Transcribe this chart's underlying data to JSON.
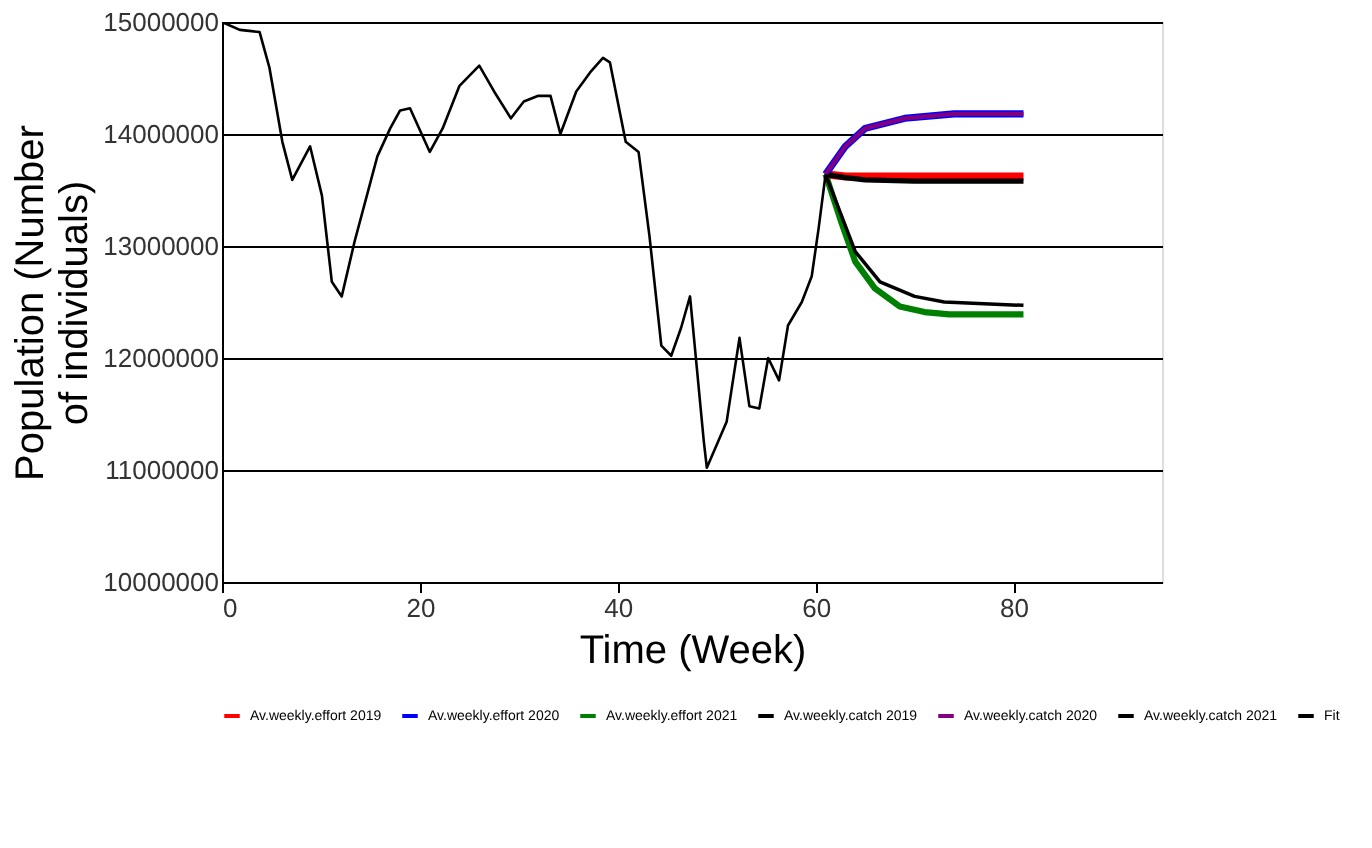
{
  "chart_data": {
    "type": "line",
    "xlabel": "Time (Week)",
    "ylabel": "Population (Number of individuals)",
    "xlim": [
      0,
      95
    ],
    "xticks": [
      0,
      20,
      40,
      60,
      80
    ],
    "ylim": [
      10000000,
      15000000
    ],
    "yticks": [
      10000000,
      11000000,
      12000000,
      13000000,
      14000000,
      15000000
    ],
    "grid": "y",
    "legend": "bottom",
    "marker": "none",
    "line_style": "solid",
    "series": [
      {
        "name": "Av.weekly.effort 2019",
        "color": "#ff0000",
        "x": [
          61,
          63,
          66,
          70,
          75,
          81
        ],
        "values": [
          13640000,
          13620000,
          13620000,
          13620000,
          13620000,
          13620000
        ]
      },
      {
        "name": "Av.weekly.effort 2020",
        "color": "#0000ff",
        "x": [
          61,
          63,
          65,
          69,
          74,
          81
        ],
        "values": [
          13640000,
          13890000,
          14050000,
          14140000,
          14180000,
          14180000
        ]
      },
      {
        "name": "Av.weekly.effort 2021",
        "color": "#008000",
        "x": [
          61,
          62.6,
          64,
          66,
          68.5,
          71,
          73.5,
          81
        ],
        "values": [
          13640000,
          13210000,
          12860000,
          12620000,
          12460000,
          12410000,
          12390000,
          12390000
        ]
      },
      {
        "name": "Av.weekly.catch 2019",
        "color": "#000000",
        "x": [
          61,
          63,
          65,
          70,
          81
        ],
        "values": [
          13640000,
          13610000,
          13590000,
          13580000,
          13580000
        ]
      },
      {
        "name": "Av.weekly.catch 2020",
        "color": "#800080",
        "x": [
          61,
          63,
          65,
          69,
          74,
          81
        ],
        "values": [
          13640000,
          13890000,
          14050000,
          14140000,
          14180000,
          14180000
        ]
      },
      {
        "name": "Av.weekly.catch 2021",
        "color": "#000000",
        "x": [
          61,
          64,
          66.5,
          70,
          73,
          81
        ],
        "values": [
          13640000,
          12950000,
          12680000,
          12550000,
          12500000,
          12470000
        ]
      },
      {
        "name": "Fit",
        "color": "#000000",
        "x": [
          0,
          1.8,
          3.8,
          4.8,
          6.1,
          7.1,
          8.9,
          10.1,
          11.1,
          12.1,
          13.4,
          15.7,
          17,
          18,
          19,
          21,
          22.3,
          24,
          26,
          27.5,
          29.2,
          30.5,
          31.9,
          33.2,
          34.2,
          35.8,
          37.2,
          38.5,
          39.2,
          40.8,
          42.1,
          43.2,
          44.4,
          45.4,
          46.4,
          47.3,
          48.7,
          49,
          51,
          52.3,
          53.3,
          54.3,
          55.2,
          56.3,
          57.2,
          58.6,
          59.6,
          60.3,
          61
        ],
        "values": [
          15000000,
          14930000,
          14910000,
          14590000,
          13930000,
          13590000,
          13890000,
          13450000,
          12680000,
          12550000,
          13040000,
          13800000,
          14050000,
          14210000,
          14230000,
          13840000,
          14050000,
          14430000,
          14610000,
          14380000,
          14140000,
          14290000,
          14340000,
          14340000,
          14000000,
          14380000,
          14550000,
          14680000,
          14640000,
          13930000,
          13840000,
          13090000,
          12110000,
          12020000,
          12270000,
          12550000,
          11250000,
          11020000,
          11430000,
          12180000,
          11570000,
          11550000,
          12000000,
          11800000,
          12290000,
          12500000,
          12730000,
          13160000,
          13640000
        ]
      }
    ]
  }
}
